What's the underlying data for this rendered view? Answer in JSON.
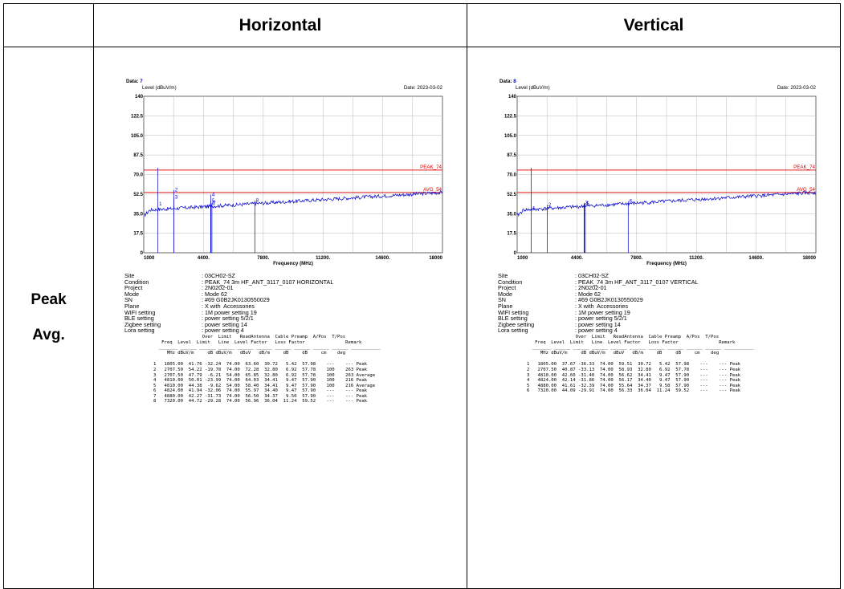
{
  "headers": {
    "blank": "",
    "horizontal": "Horizontal",
    "vertical": "Vertical"
  },
  "row_label": {
    "line1": "Peak",
    "line2": "Avg."
  },
  "reports": [
    {
      "data_label": "Data:",
      "data_num": "7",
      "date": "Date: 2023-03-02",
      "ylabel": "Level (dBuV/m)",
      "xlabel": "Frequency (MHz)",
      "y_ticks": [
        "140",
        "122.5",
        "105.0",
        "87.5",
        "70.0",
        "52.5",
        "35.0",
        "17.5",
        "0"
      ],
      "x_ticks": [
        "1000",
        "4400.",
        "7800.",
        "11200.",
        "14600.",
        "18000"
      ],
      "peak_label": "PEAK_74",
      "avg_label": "AVG_54",
      "markers": [
        {
          "n": "1",
          "freq": 1805.0,
          "level": 41.76
        },
        {
          "n": "2",
          "freq": 2707.5,
          "level": 54.22
        },
        {
          "n": "3",
          "freq": 2707.5,
          "level": 47.79
        },
        {
          "n": "4",
          "freq": 4810.0,
          "level": 50.01
        },
        {
          "n": "5",
          "freq": 4810.0,
          "level": 44.38
        },
        {
          "n": "6",
          "freq": 4824.0,
          "level": 41.94
        },
        {
          "n": "7",
          "freq": 4880.0,
          "level": 42.27
        },
        {
          "n": "8",
          "freq": 7320.0,
          "level": 44.72
        }
      ],
      "info": [
        {
          "k": "Site",
          "v": ": 03CH02-SZ"
        },
        {
          "k": "Condition",
          "v": ": PEAK_74 3m HF_ANT_3117_0107 HORIZONTAL"
        },
        {
          "k": "Project",
          "v": ": 2N0202-01"
        },
        {
          "k": "Mode",
          "v": ": Mode 62"
        },
        {
          "k": "SN",
          "v": ": #69 G0B2JK0130550029"
        },
        {
          "k": "Plane",
          "v": ": X with  Accessories"
        },
        {
          "k": "WIFI setting",
          "v": ": 1M power setting 19"
        },
        {
          "k": "BLE setting",
          "v": ": power setting 5/2/1"
        },
        {
          "k": "Zigbee setting",
          "v": ": power setting 14"
        },
        {
          "k": "Lora setting",
          "v": ": power setting 4"
        }
      ],
      "table_header": [
        "                  Over  Limit   ReadAntenna  Cable Preamp  A/Pos  T/Pos",
        "   Freq  Level  Limit   Line  Level Factor   Loss Factor               Remark",
        "  _______ ______ ______ ______ ______ ______ ______ ______ ______ ______ ___________",
        "     MHz dBuV/m     dB dBuV/m   dBuV   dB/m     dB     dB     cm    deg"
      ],
      "rows": [
        "1   1805.00  41.76 -32.24  74.00  63.60  30.72   5.42  57.98    ---    --- Peak",
        "2   2707.50  54.22 -19.78  74.00  72.28  32.80   6.92  57.78    100    263 Peak",
        "3   2707.50  47.79  -6.21  54.00  65.85  32.80   6.92  57.78    100    263 Average",
        "4   4810.00  50.01 -23.99  74.00  64.03  34.41   9.47  57.90    100    216 Peak",
        "5   4810.00  44.38  -9.62  54.00  58.40  34.41   9.47  57.90    100    216 Average",
        "6   4824.00  41.94 -32.06  74.00  55.97  34.40   9.47  57.90    ---    --- Peak",
        "7   4880.00  42.27 -31.73  74.00  56.50  34.37   9.50  57.90    ---    --- Peak",
        "8   7320.00  44.72 -29.28  74.00  56.96  36.04  11.24  59.52    ---    --- Peak"
      ]
    },
    {
      "data_label": "Data:",
      "data_num": "8",
      "date": "Date: 2023-03-02",
      "ylabel": "Level (dBuV/m)",
      "xlabel": "Frequency (MHz)",
      "y_ticks": [
        "140",
        "122.5",
        "105.0",
        "87.5",
        "70.0",
        "52.5",
        "35.0",
        "17.5",
        "0"
      ],
      "x_ticks": [
        "1000",
        "4400.",
        "7800.",
        "11200.",
        "14600.",
        "18000"
      ],
      "peak_label": "PEAK_74",
      "avg_label": "AVG_54",
      "markers": [
        {
          "n": "1",
          "freq": 1805.0,
          "level": 37.67
        },
        {
          "n": "2",
          "freq": 2707.5,
          "level": 40.87
        },
        {
          "n": "3",
          "freq": 4810.0,
          "level": 42.6
        },
        {
          "n": "4",
          "freq": 4824.0,
          "level": 42.14
        },
        {
          "n": "5",
          "freq": 4880.0,
          "level": 41.61
        },
        {
          "n": "6",
          "freq": 7320.0,
          "level": 44.09
        }
      ],
      "info": [
        {
          "k": "Site",
          "v": ": 03CH02-SZ"
        },
        {
          "k": "Condition",
          "v": ": PEAK_74 3m HF_ANT_3117_0107 VERTICAL"
        },
        {
          "k": "Project",
          "v": ": 2N0202-01"
        },
        {
          "k": "Mode",
          "v": ": Mode 62"
        },
        {
          "k": "SN",
          "v": ": #69 G0B2JK0130550029"
        },
        {
          "k": "Plane",
          "v": ": X with  Accessories"
        },
        {
          "k": "WIFI setting",
          "v": ": 1M power setting 19"
        },
        {
          "k": "BLE setting",
          "v": ": power setting 5/2/1"
        },
        {
          "k": "Zigbee setting",
          "v": ": power setting 14"
        },
        {
          "k": "Lora setting",
          "v": ": power setting 4"
        }
      ],
      "table_header": [
        "                  Over  Limit   ReadAntenna  Cable Preamp  A/Pos  T/Pos",
        "   Freq  Level  Limit   Line  Level Factor   Loss Factor               Remark",
        "  _______ ______ ______ ______ ______ ______ ______ ______ ______ ______ ___________",
        "     MHz dBuV/m     dB dBuV/m   dBuV   dB/m     dB     dB     cm    deg"
      ],
      "rows": [
        "1   1805.00  37.67 -36.33  74.00  59.51  30.72   5.42  57.98    ---    --- Peak",
        "2   2707.50  40.87 -33.13  74.00  58.93  32.80   6.92  57.78    ---    --- Peak",
        "3   4810.00  42.60 -31.40  74.00  56.62  34.41   9.47  57.90    ---    --- Peak",
        "4   4824.00  42.14 -31.86  74.00  56.17  34.40   9.47  57.90    ---    --- Peak",
        "5   4880.00  41.61 -32.39  74.00  55.64  34.37   9.50  57.90    ---    --- Peak",
        "6   7320.00  44.09 -29.91  74.00  56.33  36.04  11.24  59.52    ---    --- Peak"
      ]
    }
  ],
  "chart_data": [
    {
      "type": "line",
      "xlabel": "Frequency (MHz)",
      "ylabel": "Level (dBuV/m)",
      "xlim": [
        1000,
        18000
      ],
      "ylim": [
        0,
        140
      ],
      "limit_lines": [
        {
          "name": "PEAK_74",
          "value": 74,
          "color": "#e00000"
        },
        {
          "name": "AVG_54",
          "value": 54,
          "color": "#e00000"
        }
      ],
      "series": [
        {
          "values_x": [
            1805.0,
            2707.5,
            2707.5,
            4810.0,
            4810.0,
            4824.0,
            4880.0,
            7320.0
          ],
          "values_y": [
            41.76,
            54.22,
            47.79,
            50.01,
            44.38,
            41.94,
            42.27,
            44.72
          ]
        }
      ],
      "grid": true,
      "trace_color": "#0000cc"
    },
    {
      "type": "line",
      "xlabel": "Frequency (MHz)",
      "ylabel": "Level (dBuV/m)",
      "xlim": [
        1000,
        18000
      ],
      "ylim": [
        0,
        140
      ],
      "limit_lines": [
        {
          "name": "PEAK_74",
          "value": 74,
          "color": "#e00000"
        },
        {
          "name": "AVG_54",
          "value": 54,
          "color": "#e00000"
        }
      ],
      "series": [
        {
          "values_x": [
            1805.0,
            2707.5,
            4810.0,
            4824.0,
            4880.0,
            7320.0
          ],
          "values_y": [
            37.67,
            40.87,
            42.6,
            42.14,
            41.61,
            44.09
          ]
        }
      ],
      "grid": true,
      "trace_color": "#0000cc"
    }
  ]
}
